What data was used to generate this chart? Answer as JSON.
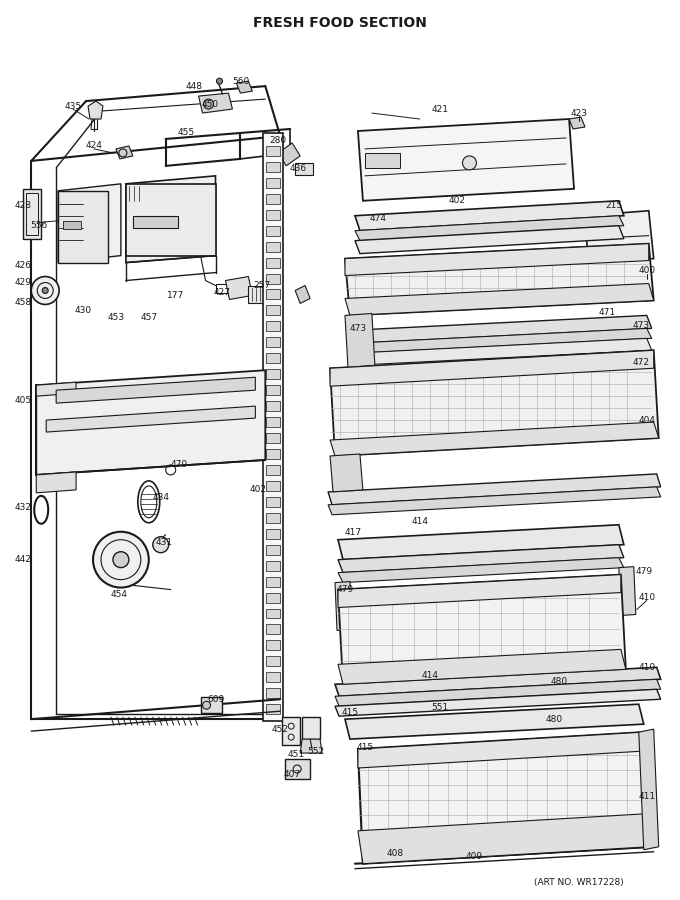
{
  "title": "FRESH FOOD SECTION",
  "footer": "(ART NO. WR17228)",
  "bg_color": "#ffffff",
  "lc": "#1a1a1a",
  "fig_width": 6.8,
  "fig_height": 9.0,
  "dpi": 100
}
